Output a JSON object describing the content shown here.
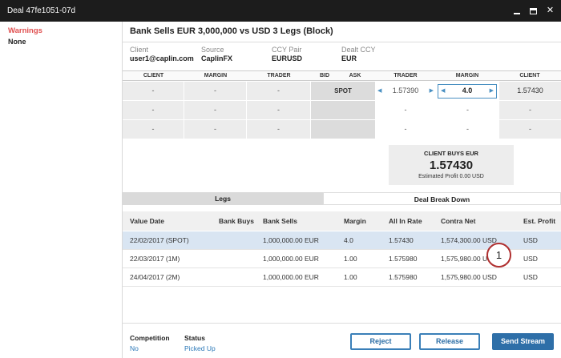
{
  "window": {
    "title": "Deal 47fe1051-07d"
  },
  "sidebar": {
    "warnings_label": "Warnings",
    "warnings_value": "None"
  },
  "deal": {
    "title": "Bank Sells EUR 3,000,000 vs USD 3 Legs (Block)",
    "info": [
      {
        "label": "Client",
        "value": "user1@caplin.com"
      },
      {
        "label": "Source",
        "value": "CaplinFX"
      },
      {
        "label": "CCY Pair",
        "value": "EURUSD"
      },
      {
        "label": "Dealt CCY",
        "value": "EUR"
      }
    ]
  },
  "grid": {
    "headers": [
      "CLIENT",
      "MARGIN",
      "TRADER",
      "BID",
      "ASK",
      "TRADER",
      "MARGIN",
      "CLIENT"
    ],
    "spot_label": "SPOT",
    "trader_price": "1.57390",
    "margin_value": "4.0",
    "client_price": "1.57430",
    "dash": "-"
  },
  "client_box": {
    "title": "CLIENT BUYS EUR",
    "price": "1.57430",
    "profit": "Estimated Profit 0.00 USD"
  },
  "tabs": [
    {
      "label": "Legs"
    },
    {
      "label": "Deal Break Down"
    }
  ],
  "legs_table": {
    "columns": [
      "Value Date",
      "Bank Buys",
      "Bank Sells",
      "Margin",
      "All In Rate",
      "Contra Net",
      "Est. Profit"
    ],
    "rows": [
      {
        "value_date": "22/02/2017 (SPOT)",
        "bank_buys": "",
        "bank_sells": "1,000,000.00 EUR",
        "margin": "4.0",
        "all_in_rate": "1.57430",
        "contra_net": "1,574,300.00 USD",
        "est_profit": "USD"
      },
      {
        "value_date": "22/03/2017 (1M)",
        "bank_buys": "",
        "bank_sells": "1,000,000.00 EUR",
        "margin": "1.00",
        "all_in_rate": "1.575980",
        "contra_net": "1,575,980.00 USD",
        "est_profit": "USD"
      },
      {
        "value_date": "24/04/2017 (2M)",
        "bank_buys": "",
        "bank_sells": "1,000,000.00 EUR",
        "margin": "1.00",
        "all_in_rate": "1.575980",
        "contra_net": "1,575,980.00 USD",
        "est_profit": "USD"
      }
    ]
  },
  "badge": "1",
  "footer": {
    "competition_label": "Competition",
    "competition_value": "No",
    "status_label": "Status",
    "status_value": "Picked Up",
    "reject_label": "Reject",
    "release_label": "Release",
    "send_stream_label": "Send Stream"
  },
  "colors": {
    "accent": "#2e6fa8",
    "warning": "#e05050",
    "selected_row": "#d9e5f2"
  }
}
